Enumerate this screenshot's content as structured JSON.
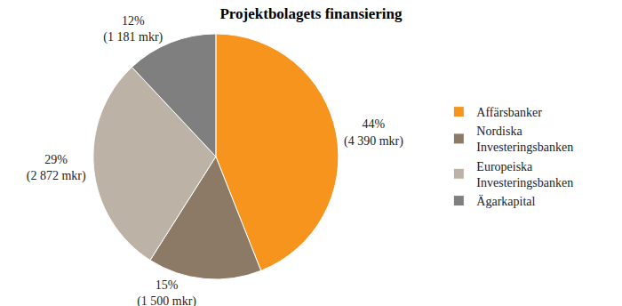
{
  "chart_data": {
    "type": "pie",
    "title": "Projektbolagets finansiering",
    "categories": [
      "Affärsbanker",
      "Nordiska Investeringsbanken",
      "Europeiska Investeringsbanken",
      "Ägarkapital"
    ],
    "values": [
      44,
      15,
      29,
      12
    ],
    "value_labels": [
      "44%",
      "15%",
      "29%",
      "12%"
    ],
    "amounts": [
      4390,
      1500,
      2872,
      1181
    ],
    "amount_labels": [
      "(4 390 mkr)",
      "(1 500 mkr)",
      "(2 872 mkr)",
      "(1 181 mkr)"
    ],
    "colors": [
      "#f7941d",
      "#8c7a66",
      "#bdb2a6",
      "#7f7f7f"
    ],
    "data_labels": true,
    "legend": "right"
  }
}
